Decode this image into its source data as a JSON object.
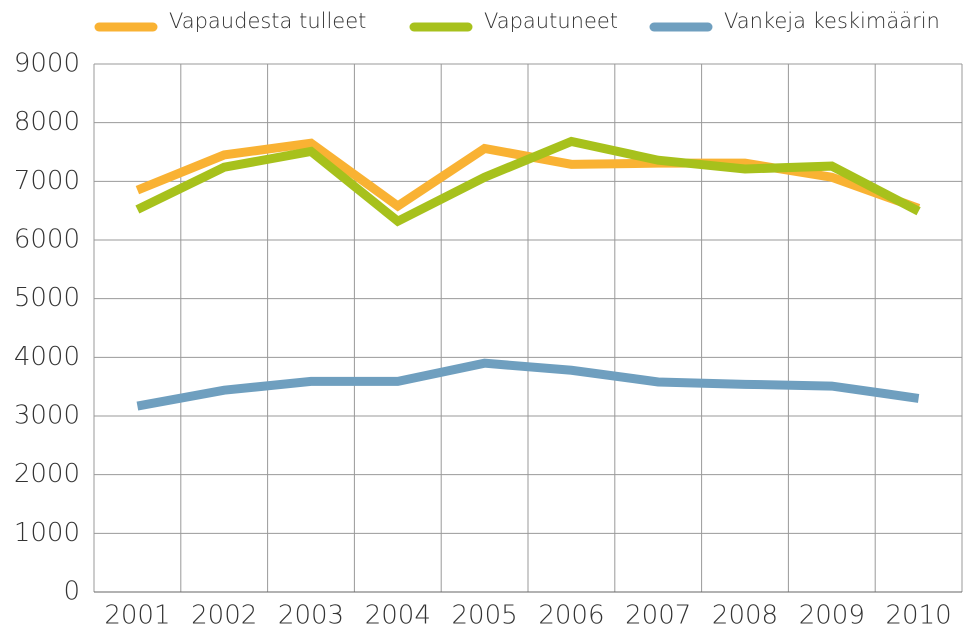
{
  "chart_data": {
    "type": "line",
    "categories": [
      "2001",
      "2002",
      "2003",
      "2004",
      "2005",
      "2006",
      "2007",
      "2008",
      "2009",
      "2010"
    ],
    "series": [
      {
        "name": "Vapaudesta tulleet",
        "color": "#f9b233",
        "values": [
          6850,
          7450,
          7650,
          6580,
          7560,
          7290,
          7310,
          7310,
          7070,
          6540
        ]
      },
      {
        "name": "Vapautuneet",
        "color": "#a7c11c",
        "values": [
          6520,
          7240,
          7510,
          6320,
          7070,
          7680,
          7360,
          7210,
          7260,
          6490
        ]
      },
      {
        "name": "Vankeja keskimäärin",
        "color": "#6f9fbf",
        "values": [
          3170,
          3440,
          3590,
          3590,
          3900,
          3780,
          3580,
          3540,
          3510,
          3300
        ]
      }
    ],
    "ylim": [
      0,
      9000
    ],
    "yticks": [
      0,
      1000,
      2000,
      3000,
      4000,
      5000,
      6000,
      7000,
      8000,
      9000
    ],
    "grid": true
  }
}
